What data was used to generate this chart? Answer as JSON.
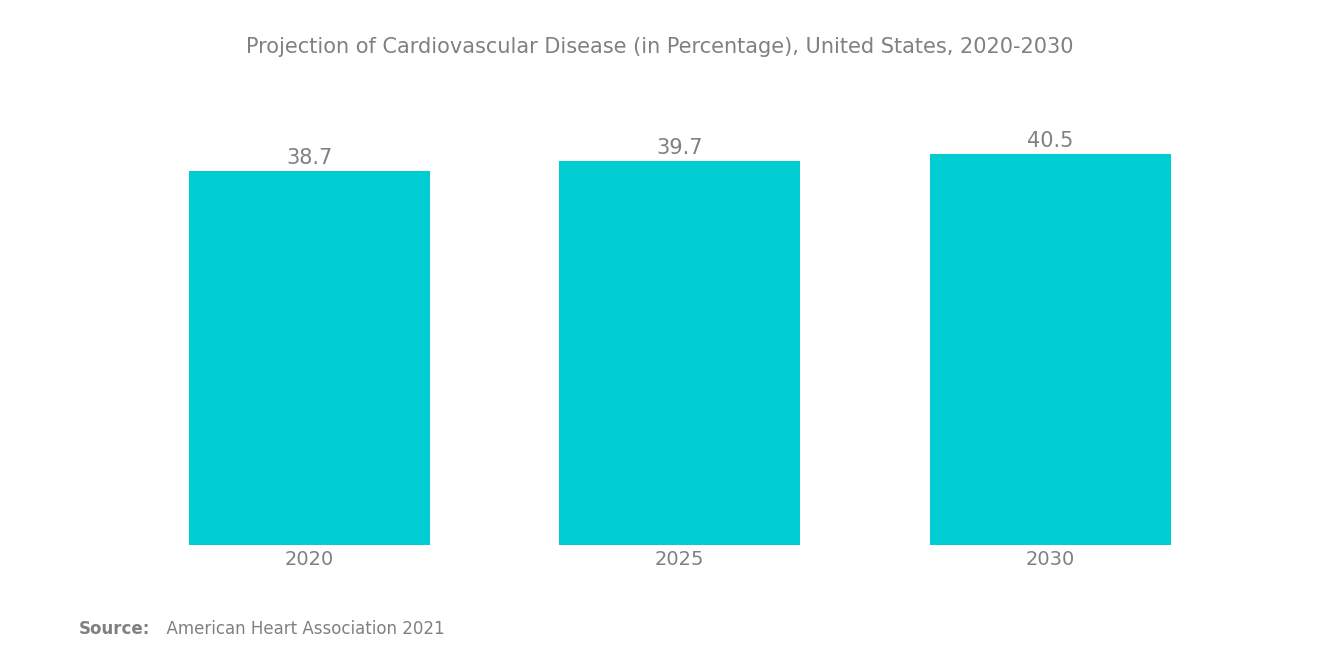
{
  "title": "Projection of Cardiovascular Disease (in Percentage), United States, 2020-2030",
  "categories": [
    "2020",
    "2025",
    "2030"
  ],
  "values": [
    38.7,
    39.7,
    40.5
  ],
  "bar_color": "#00CDD1",
  "title_color": "#808080",
  "label_color": "#808080",
  "background_color": "#ffffff",
  "source_bold": "Source:",
  "source_text": "  American Heart Association 2021",
  "bar_width": 0.65,
  "ylim": [
    0,
    44
  ],
  "value_fontsize": 15,
  "title_fontsize": 15,
  "tick_fontsize": 14,
  "source_fontsize": 12,
  "xlim_left": -0.55,
  "xlim_right": 2.55
}
